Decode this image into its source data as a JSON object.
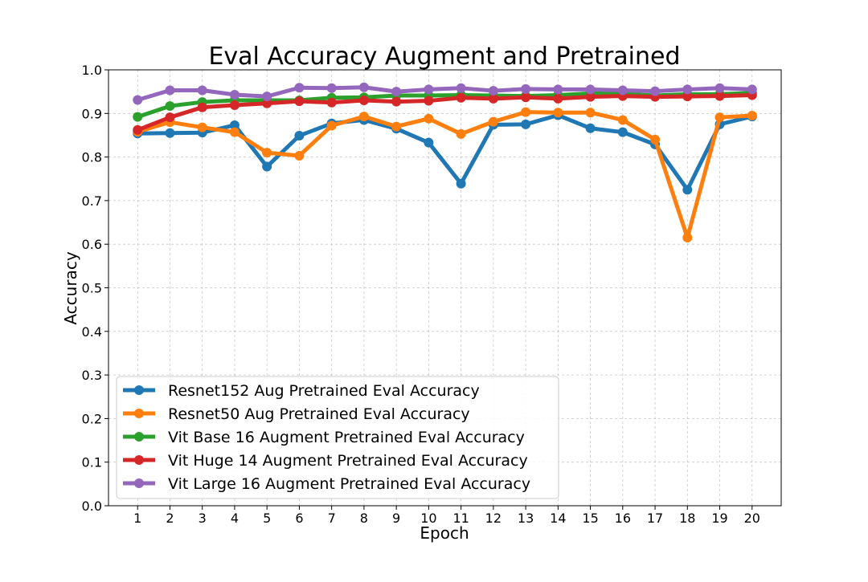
{
  "chart_data": {
    "type": "line",
    "title": "Eval Accuracy Augment and Pretrained",
    "xlabel": "Epoch",
    "ylabel": "Accuracy",
    "x": [
      1,
      2,
      3,
      4,
      5,
      6,
      7,
      8,
      9,
      10,
      11,
      12,
      13,
      14,
      15,
      16,
      17,
      18,
      19,
      20
    ],
    "xlim": [
      0.1,
      20.9
    ],
    "ylim": [
      0.0,
      1.0
    ],
    "yticks": [
      0.0,
      0.1,
      0.2,
      0.3,
      0.4,
      0.5,
      0.6,
      0.7,
      0.8,
      0.9,
      1.0
    ],
    "grid": true,
    "legend_position": "lower-left",
    "series": [
      {
        "name": "Resnet152 Aug Pretrained Eval Accuracy",
        "color": "#1f77b4",
        "values": [
          0.854,
          0.855,
          0.856,
          0.873,
          0.778,
          0.849,
          0.877,
          0.885,
          0.865,
          0.833,
          0.739,
          0.874,
          0.875,
          0.896,
          0.866,
          0.857,
          0.829,
          0.725,
          0.875,
          0.893
        ]
      },
      {
        "name": "Resnet50 Aug Pretrained Eval Accuracy",
        "color": "#ff7f0e",
        "values": [
          0.858,
          0.88,
          0.868,
          0.857,
          0.81,
          0.803,
          0.872,
          0.893,
          0.87,
          0.888,
          0.853,
          0.881,
          0.903,
          0.902,
          0.902,
          0.885,
          0.84,
          0.615,
          0.891,
          0.895
        ]
      },
      {
        "name": "Vit Base 16 Augment Pretrained Eval Accuracy",
        "color": "#2ca02c",
        "values": [
          0.892,
          0.917,
          0.926,
          0.93,
          0.93,
          0.93,
          0.936,
          0.937,
          0.941,
          0.941,
          0.942,
          0.941,
          0.94,
          0.942,
          0.946,
          0.945,
          0.941,
          0.944,
          0.944,
          0.947
        ]
      },
      {
        "name": "Vit Huge 14 Augment Pretrained Eval Accuracy",
        "color": "#d62728",
        "values": [
          0.862,
          0.891,
          0.914,
          0.919,
          0.923,
          0.928,
          0.925,
          0.93,
          0.927,
          0.929,
          0.936,
          0.934,
          0.937,
          0.934,
          0.938,
          0.94,
          0.938,
          0.939,
          0.94,
          0.942
        ]
      },
      {
        "name": "Vit Large 16 Augment Pretrained Eval Accuracy",
        "color": "#9467bd",
        "values": [
          0.931,
          0.953,
          0.953,
          0.943,
          0.939,
          0.959,
          0.958,
          0.96,
          0.95,
          0.955,
          0.958,
          0.952,
          0.956,
          0.955,
          0.955,
          0.953,
          0.951,
          0.955,
          0.958,
          0.955
        ]
      }
    ]
  }
}
